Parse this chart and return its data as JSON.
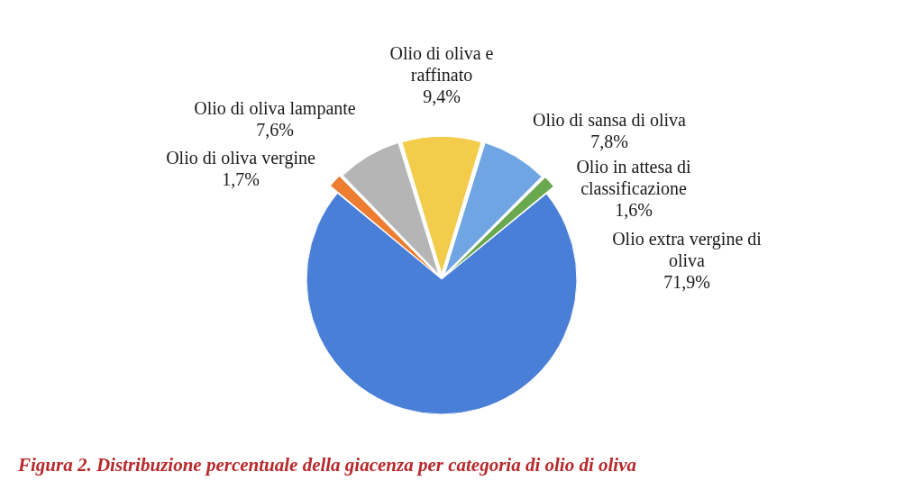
{
  "chart_data": {
    "type": "pie",
    "title": "Figura 2. Distribuzione percentuale della giacenza per categoria di olio di oliva",
    "categories": [
      "Olio di oliva e raffinato",
      "Olio di sansa di oliva",
      "Olio in attesa di classificazione",
      "Olio extra vergine di oliva",
      "Olio di oliva vergine",
      "Olio di oliva lampante"
    ],
    "values": [
      9.4,
      7.8,
      1.6,
      71.9,
      1.7,
      7.6
    ],
    "colors": [
      "#f2cc4a",
      "#6fa5e3",
      "#6aa84f",
      "#4a7fd8",
      "#ed7d31",
      "#b5b5b5"
    ],
    "value_labels": [
      "9,4%",
      "7,8%",
      "1,6%",
      "71,9%",
      "1,7%",
      "7,6%"
    ]
  }
}
